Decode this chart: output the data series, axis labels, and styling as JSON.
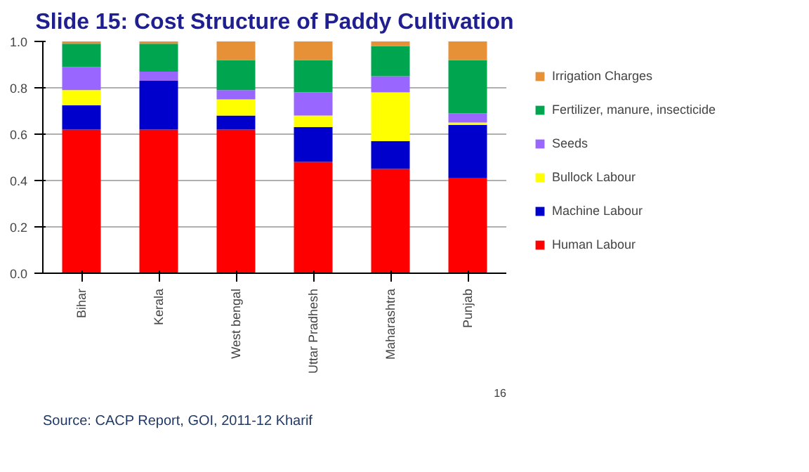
{
  "chart_data": {
    "type": "bar",
    "stacked": true,
    "title": "Slide 15: Cost Structure of Paddy Cultivation",
    "categories": [
      "Bihar",
      "Kerala",
      "West bengal",
      "Uttar Pradhesh",
      "Maharashtra",
      "Punjab"
    ],
    "series": [
      {
        "name": "Human Labour",
        "color": "#ff0000",
        "values": [
          0.62,
          0.62,
          0.62,
          0.48,
          0.45,
          0.41
        ]
      },
      {
        "name": "Machine Labour",
        "color": "#0000cc",
        "values": [
          0.105,
          0.21,
          0.06,
          0.15,
          0.12,
          0.23
        ]
      },
      {
        "name": "Bullock Labour",
        "color": "#ffff00",
        "values": [
          0.065,
          0.0,
          0.07,
          0.05,
          0.21,
          0.01
        ]
      },
      {
        "name": "Seeds",
        "color": "#9966ff",
        "values": [
          0.1,
          0.04,
          0.04,
          0.1,
          0.07,
          0.04
        ]
      },
      {
        "name": "Fertilizer, manure, insecticide",
        "color": "#00a550",
        "values": [
          0.1,
          0.12,
          0.13,
          0.14,
          0.13,
          0.23
        ]
      },
      {
        "name": "Irrigation Charges",
        "color": "#e69138",
        "values": [
          0.01,
          0.01,
          0.08,
          0.08,
          0.02,
          0.08
        ]
      }
    ],
    "ylim": [
      0,
      1.0
    ],
    "yticks": [
      {
        "value": 0,
        "label": "0.0"
      },
      0.2,
      0.4,
      0.6,
      0.8,
      {
        "value": 1.0,
        "label": "1.0"
      }
    ],
    "grid": "y",
    "legend": "right",
    "annotations": [
      "16",
      "Source: CACP Report, GOI, 2011-12 Kharif"
    ]
  }
}
